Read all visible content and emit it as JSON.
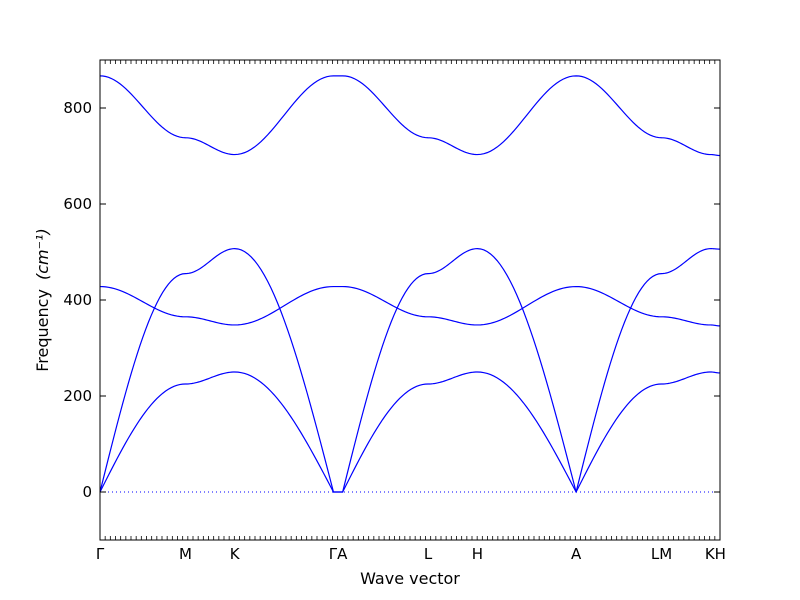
{
  "chart_data": {
    "type": "line",
    "title": "",
    "xlabel": "Wave vector",
    "ylabel": "Frequency",
    "ylabel_unit": "(cm⁻¹)",
    "ylim": [
      -100,
      900
    ],
    "yticks": [
      0,
      200,
      400,
      600,
      800
    ],
    "grid": false,
    "legend": "none",
    "zero_line": {
      "y": 0,
      "style": "dotted",
      "color": "#0000ff"
    },
    "series_color": "#0000ff",
    "path_segments": [
      {
        "from": "Γ",
        "to": "M",
        "length": 0.577
      },
      {
        "from": "M",
        "to": "K",
        "length": 0.333
      },
      {
        "from": "K",
        "to": "Γ",
        "length": 0.667
      },
      {
        "from": "Γ",
        "to": "A",
        "length": 0.062
      },
      {
        "from": "A",
        "to": "L",
        "length": 0.577
      },
      {
        "from": "L",
        "to": "H",
        "length": 0.333
      },
      {
        "from": "H",
        "to": "A",
        "length": 0.667
      },
      {
        "from": "A",
        "to": "L",
        "length": 0.577
      },
      {
        "from": "M",
        "to": "K",
        "length": 0.333
      },
      {
        "from": "K",
        "to": "H",
        "length": 0.062
      }
    ],
    "high_symmetry_labels": [
      "Γ",
      "M",
      "K",
      "ΓA",
      "L",
      "H",
      "A",
      "LM",
      "KH"
    ],
    "branches": [
      {
        "name": "",
        "values": [
          [
            0,
            0
          ],
          [
            210,
            0
          ],
          [
            210,
            0
          ],
          [
            0,
            0
          ],
          [
            0,
            0
          ],
          [
            210,
            0
          ],
          [
            210,
            0
          ],
          [
            0,
            0
          ],
          [
            0,
            0
          ],
          [
            210,
            0
          ],
          [
            210,
            0
          ]
        ]
      }
    ],
    "band_nodes": {
      "b1": [
        0,
        225,
        250,
        0,
        0,
        225,
        250,
        0,
        225,
        250,
        248
      ],
      "b2": [
        0,
        455,
        507,
        0,
        0,
        455,
        507,
        0,
        455,
        507,
        506
      ],
      "b3": [
        428,
        365,
        348,
        428,
        428,
        365,
        348,
        428,
        365,
        348,
        346
      ],
      "b4": [
        867,
        738,
        703,
        867,
        867,
        738,
        703,
        867,
        738,
        703,
        701
      ]
    }
  }
}
